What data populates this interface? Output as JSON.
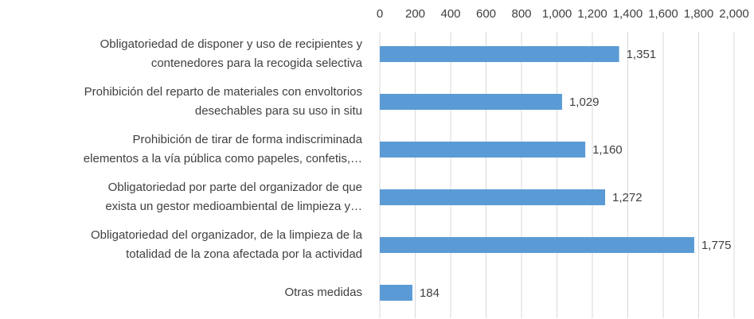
{
  "chart_data": {
    "type": "bar",
    "orientation": "horizontal",
    "color": "#5b9bd5",
    "grid": true,
    "categories": [
      [
        "Obligatoriedad de disponer y uso de recipientes y",
        "contenedores para la recogida selectiva"
      ],
      [
        "Prohibición del reparto de materiales con envoltorios",
        "desechables para su uso in situ"
      ],
      [
        "Prohibición de tirar de forma indiscriminada",
        "elementos a la vía pública como papeles, confetis,…"
      ],
      [
        "Obligatoriedad por parte del organizador de que",
        "exista un gestor medioambiental de limpieza y…"
      ],
      [
        "Obligatoriedad del organizador, de la limpieza de la",
        "totalidad de la zona afectada por la actividad"
      ],
      [
        "Otras medidas"
      ]
    ],
    "values": [
      1351,
      1029,
      1160,
      1272,
      1775,
      184
    ],
    "value_labels": [
      "1,351",
      "1,029",
      "1,160",
      "1,272",
      "1,775",
      "184"
    ],
    "xlim": [
      0,
      2000
    ],
    "xticks": [
      0,
      200,
      400,
      600,
      800,
      {
        "value": 1000,
        "label": "1,000"
      },
      {
        "value": 1200,
        "label": "1,200"
      },
      {
        "value": 1400,
        "label": "1,400"
      },
      {
        "value": 1600,
        "label": "1,600"
      },
      {
        "value": 1800,
        "label": "1,800"
      },
      {
        "value": 2000,
        "label": "2,000"
      }
    ]
  }
}
